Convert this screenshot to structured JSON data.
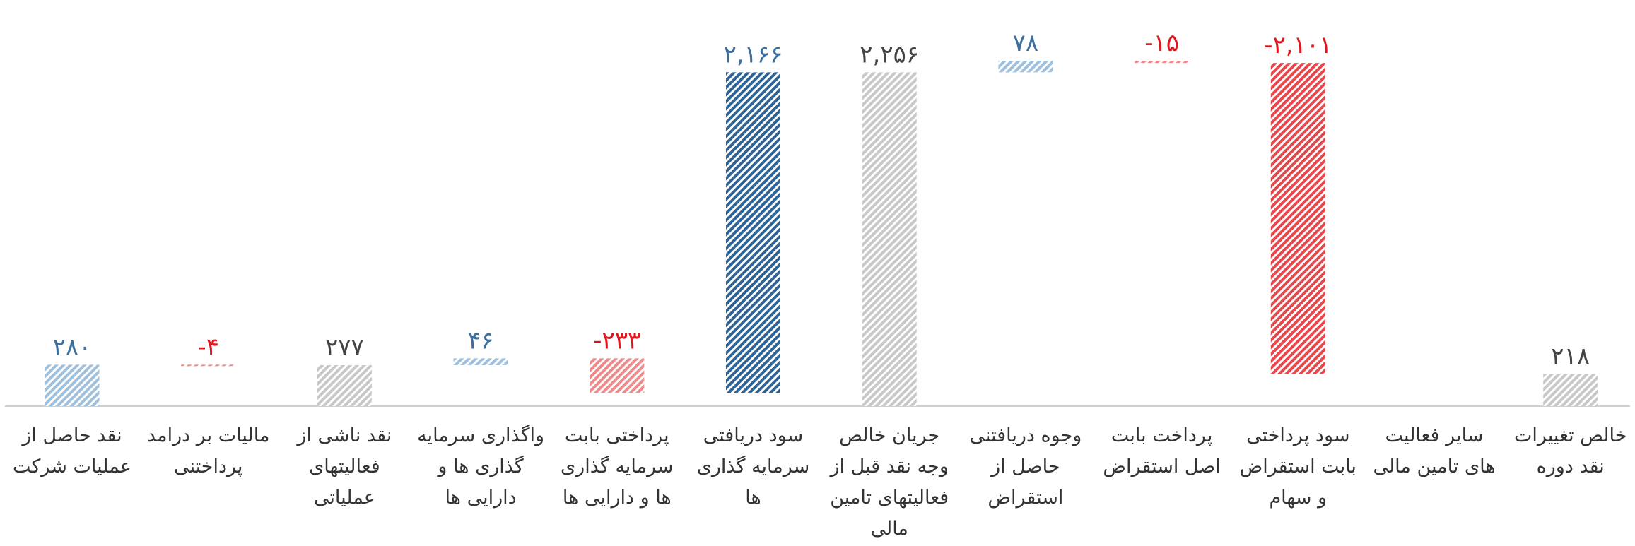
{
  "chart_data": {
    "type": "waterfall",
    "categories": [
      "نقد حاصل از عملیات شرکت",
      "مالیات بر درامد پرداختنی",
      "نقد  ناشی از فعالیتهای عملیاتی",
      "واگذاری سرمایه گذاری ها و دارایی ها",
      "پرداختی  بابت سرمایه گذاری ها و دارایی ها",
      "سود دریافتی سرمایه گذاری ها",
      "جریان خالص وجه نقد قبل از فعالیتهای تامین مالی",
      "وجوه دریافتنی حاصل از استقراض",
      "پرداخت  بابت اصل استقراض",
      "سود پرداختی بابت استقراض و سهام",
      "سایر فعالیت های تامین مالی",
      "خالص تغییرات نقد دوره"
    ],
    "values": [
      280,
      -4,
      277,
      46,
      -233,
      2166,
      2256,
      78,
      -15,
      -2101,
      null,
      218
    ],
    "value_labels": [
      "۲۸۰",
      "-۴",
      "۲۷۷",
      "۴۶",
      "-۲۳۳",
      "۲,۱۶۶",
      "۲,۲۵۶",
      "۷۸",
      "-۱۵",
      "-۲,۱۰۱",
      null,
      "۲۱۸"
    ],
    "is_total": [
      false,
      false,
      true,
      false,
      false,
      false,
      true,
      false,
      false,
      false,
      false,
      true
    ],
    "bar_colors": [
      "#9fc0dc",
      "#f08a8a",
      "#c8c8c8",
      "#9fc0dc",
      "#f08a8a",
      "#2f6496",
      "#c8c8c8",
      "#9fc0dc",
      "#f08a8a",
      "#e8474c",
      "#c8c8c8",
      "#c8c8c8"
    ],
    "label_colors": [
      "#3c6e9e",
      "#e0161f",
      "#444444",
      "#3c6e9e",
      "#e0161f",
      "#3c6e9e",
      "#444444",
      "#3c6e9e",
      "#e0161f",
      "#e0161f",
      "#444444",
      "#444444"
    ]
  }
}
